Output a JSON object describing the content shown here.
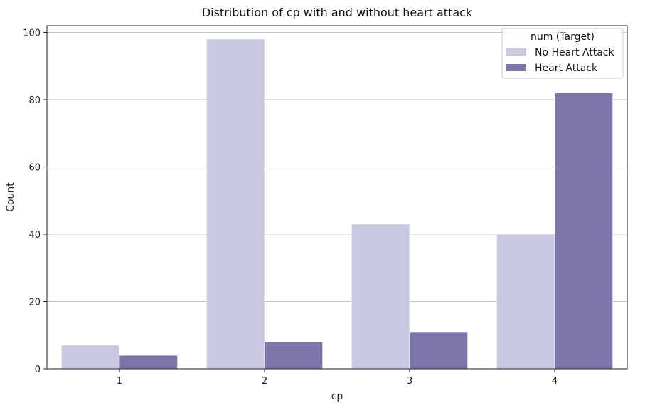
{
  "chart_data": {
    "type": "bar",
    "title": "Distribution of cp with and without heart attack",
    "xlabel": "cp",
    "ylabel": "Count",
    "categories": [
      "1",
      "2",
      "3",
      "4"
    ],
    "series": [
      {
        "name": "No Heart Attack",
        "values": [
          7,
          98,
          43,
          40
        ],
        "color": "#c8c8e0"
      },
      {
        "name": "Heart Attack",
        "values": [
          4,
          8,
          11,
          82
        ],
        "color": "#7e75aa"
      }
    ],
    "ylim": [
      0,
      102
    ],
    "yticks": [
      0,
      20,
      40,
      60,
      80,
      100
    ],
    "grid": true,
    "legend": {
      "title": "num (Target)",
      "placement": "top-right"
    }
  }
}
